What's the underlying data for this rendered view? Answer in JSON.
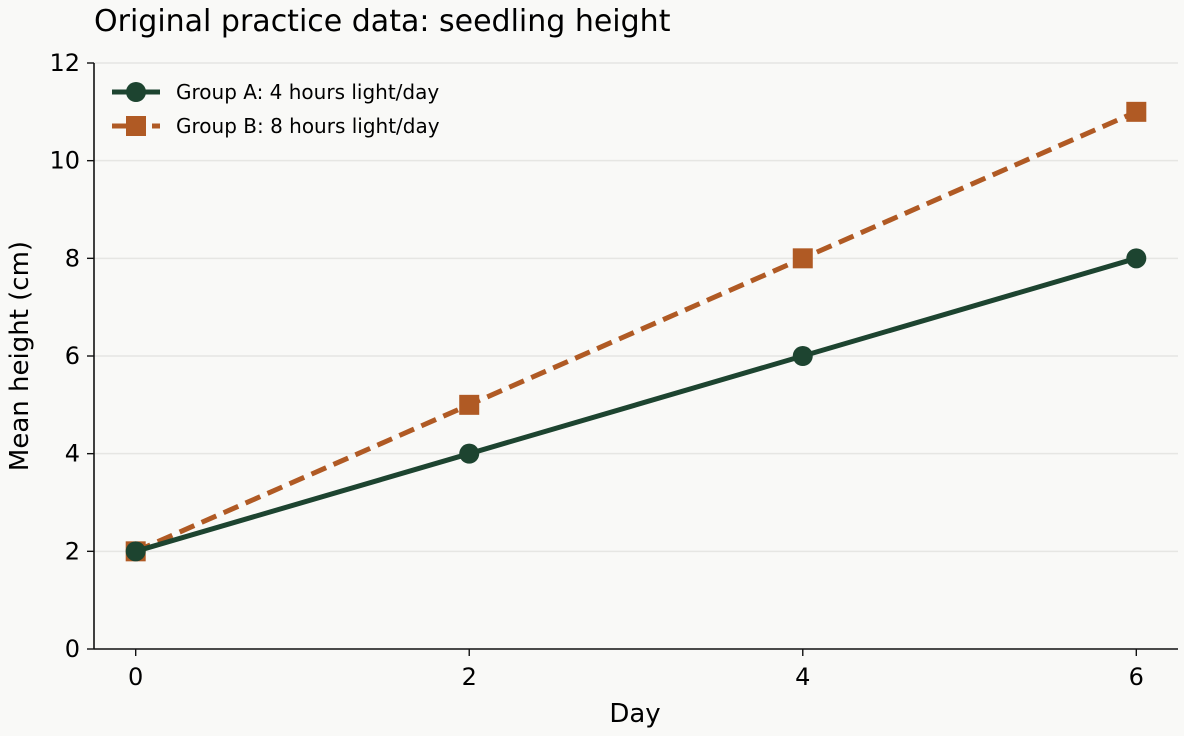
{
  "chart_data": {
    "type": "line",
    "title": "Original practice data: seedling height",
    "xlabel": "Day",
    "ylabel": "Mean height (cm)",
    "x": [
      0,
      2,
      4,
      6
    ],
    "xticks": [
      0,
      2,
      4,
      6
    ],
    "yticks": [
      0,
      2,
      4,
      6,
      8,
      10,
      12
    ],
    "xlim": [
      -0.25,
      6.25
    ],
    "ylim": [
      0,
      12
    ],
    "grid": "horizontal",
    "legend_position": "top-left",
    "series": [
      {
        "name": "Group A: 4 hours light/day",
        "values": [
          2,
          4,
          6,
          8
        ],
        "color": "#1d4430",
        "line_style": "solid",
        "marker": "circle"
      },
      {
        "name": "Group B: 8 hours light/day",
        "values": [
          2,
          5,
          8,
          11
        ],
        "color": "#b05a24",
        "line_style": "dashed",
        "marker": "square"
      }
    ]
  }
}
